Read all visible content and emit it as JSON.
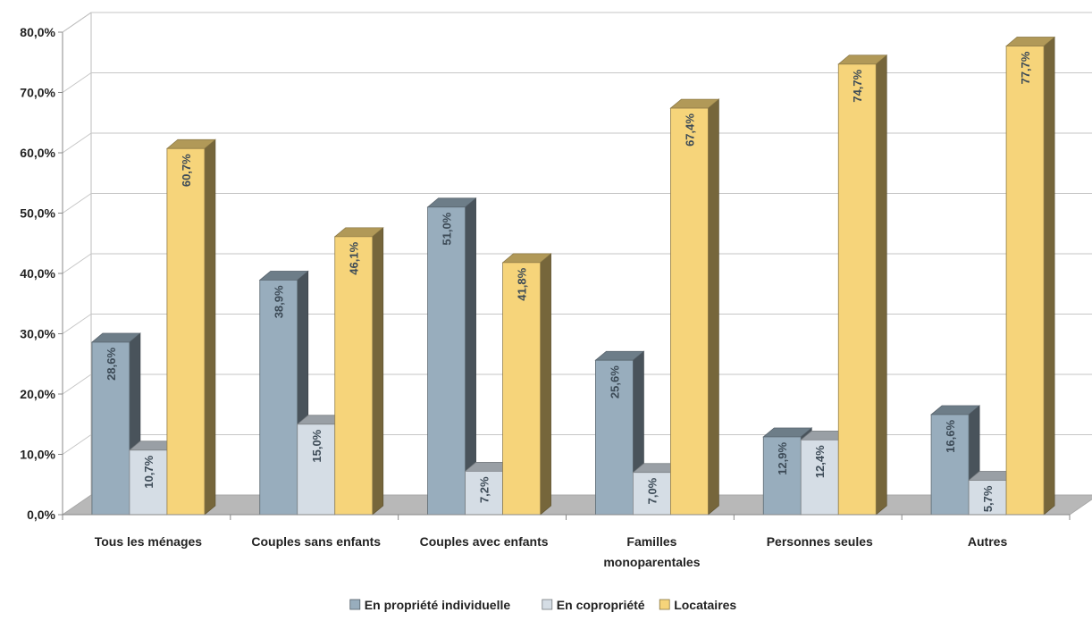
{
  "chart_data": {
    "type": "bar",
    "title": "",
    "xlabel": "",
    "ylabel": "",
    "ylim": [
      0,
      80
    ],
    "yticks": [
      "0,0%",
      "10,0%",
      "20,0%",
      "30,0%",
      "40,0%",
      "50,0%",
      "60,0%",
      "70,0%",
      "80,0%"
    ],
    "categories": [
      [
        "Tous les ménages"
      ],
      [
        "Couples sans enfants"
      ],
      [
        "Couples avec enfants"
      ],
      [
        "Familles",
        "monoparentales"
      ],
      [
        "Personnes seules"
      ],
      [
        "Autres"
      ]
    ],
    "series": [
      {
        "name": "En propriété individuelle",
        "color": "#98adbd",
        "values": [
          28.6,
          38.9,
          51.0,
          25.6,
          12.9,
          16.6
        ],
        "labels": [
          "28,6%",
          "38,9%",
          "51,0%",
          "25,6%",
          "12,9%",
          "16,6%"
        ]
      },
      {
        "name": "En copropriété",
        "color": "#d5dde5",
        "values": [
          10.7,
          15.0,
          7.2,
          7.0,
          12.4,
          5.7
        ],
        "labels": [
          "10,7%",
          "15,0%",
          "7,2%",
          "7,0%",
          "12,4%",
          "5,7%"
        ]
      },
      {
        "name": "Locataires",
        "color": "#f6d47a",
        "values": [
          60.7,
          46.1,
          41.8,
          67.4,
          74.7,
          77.7
        ],
        "labels": [
          "60,7%",
          "46,1%",
          "41,8%",
          "67,4%",
          "74,7%",
          "77,7%"
        ]
      }
    ],
    "grid": true,
    "legend_position": "bottom"
  }
}
